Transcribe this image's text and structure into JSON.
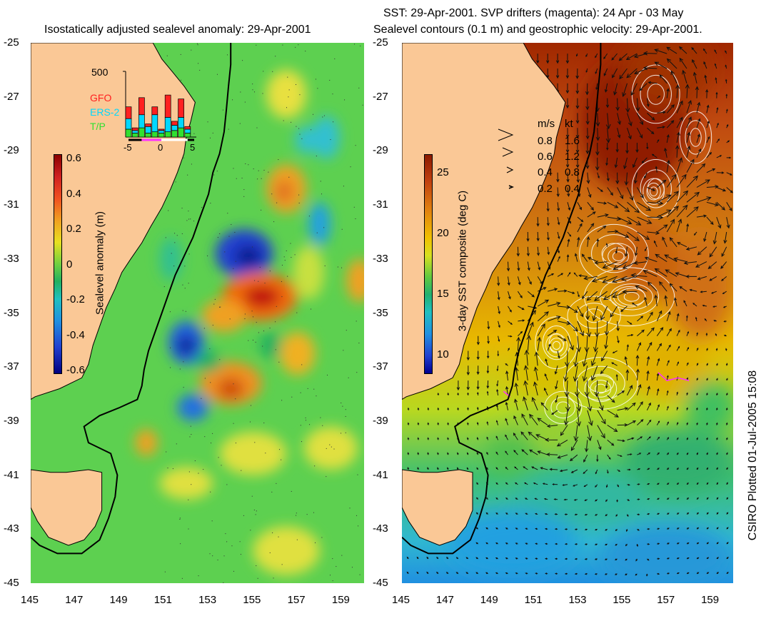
{
  "left": {
    "title": "Isostatically adjusted sealevel anomaly: 29-Apr-2001",
    "colorbar": {
      "label": "Sealevel anomaly (m)",
      "ticks": [
        "0.6",
        "0.4",
        "0.2",
        "0",
        "-0.2",
        "-0.4",
        "-0.6"
      ],
      "range": [
        -0.6,
        0.6
      ]
    },
    "inset": {
      "ymax_label": "500",
      "legend": [
        "GFO",
        "ERS-2",
        "T/P"
      ],
      "legend_colors": [
        "#ff2020",
        "#00d8ff",
        "#30e030"
      ],
      "xticks": [
        "-5",
        "0",
        "5"
      ],
      "bars": [
        {
          "day": -5,
          "tp": 60,
          "ers": 80,
          "gfo": 90
        },
        {
          "day": -4,
          "tp": 30,
          "ers": 20,
          "gfo": 20
        },
        {
          "day": -3,
          "tp": 70,
          "ers": 100,
          "gfo": 130
        },
        {
          "day": -2,
          "tp": 30,
          "ers": 50,
          "gfo": 20
        },
        {
          "day": -1,
          "tp": 40,
          "ers": 130,
          "gfo": 60
        },
        {
          "day": 0,
          "tp": 30,
          "ers": 20,
          "gfo": 10
        },
        {
          "day": 1,
          "tp": 40,
          "ers": 110,
          "gfo": 170
        },
        {
          "day": 2,
          "tp": 50,
          "ers": 40,
          "gfo": 30
        },
        {
          "day": 3,
          "tp": 70,
          "ers": 80,
          "gfo": 140
        },
        {
          "day": 4,
          "tp": 30,
          "ers": 30,
          "gfo": 20
        }
      ]
    }
  },
  "right": {
    "title_line1": "SST: 29-Apr-2001. SVP drifters (magenta): 24 Apr - 03 May",
    "title_line2": "Sealevel contours (0.1 m) and geostrophic velocity: 29-Apr-2001.",
    "colorbar": {
      "label": "3-day SST composite (deg C)",
      "ticks": [
        "25",
        "20",
        "15",
        "10"
      ],
      "range": [
        8.5,
        26.5
      ]
    },
    "speed_key": {
      "header_ms": "m/s",
      "header_kt": "kt",
      "rows": [
        {
          "ms": "0.8",
          "kt": "1.6"
        },
        {
          "ms": "0.6",
          "kt": "1.2"
        },
        {
          "ms": "0.4",
          "kt": "0.8"
        },
        {
          "ms": "0.2",
          "kt": "0.4"
        }
      ]
    }
  },
  "axes": {
    "lat_ticks": [
      "-25",
      "-27",
      "-29",
      "-31",
      "-33",
      "-35",
      "-37",
      "-39",
      "-41",
      "-43",
      "-45"
    ],
    "lon_ticks": [
      "145",
      "147",
      "149",
      "151",
      "153",
      "155",
      "157",
      "159"
    ],
    "lat_range": [
      -45,
      -25
    ],
    "lon_range": [
      145,
      160
    ]
  },
  "credit": "CSIRO Plotted 01-Jul-2005 15:08",
  "colors": {
    "land": "#fac896",
    "drifter": "#ff30ff"
  }
}
